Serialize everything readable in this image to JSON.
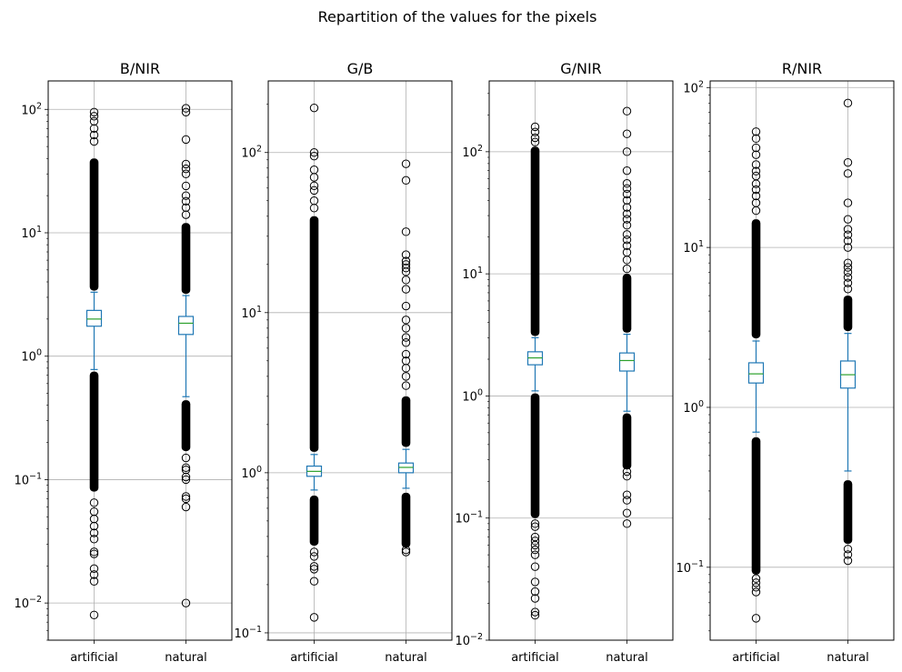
{
  "figure": {
    "suptitle": "Repartition of the values for the pixels"
  },
  "chart_data": [
    {
      "type": "box",
      "title": "B/NIR",
      "y_scale": "log",
      "ylim": [
        0.005,
        170
      ],
      "yticks": [
        0.01,
        0.1,
        1,
        10,
        100
      ],
      "grid": true,
      "categories": [
        "artificial",
        "natural"
      ],
      "boxes": [
        {
          "name": "artificial",
          "q1": 1.75,
          "median": 2.0,
          "q3": 2.35,
          "whisker_low": 0.78,
          "whisker_high": 3.3,
          "outlier_bands": [
            [
              0.08,
              0.75
            ],
            [
              3.4,
              40
            ]
          ],
          "outliers": [
            0.008,
            0.015,
            0.017,
            0.019,
            0.025,
            0.026,
            0.033,
            0.037,
            0.042,
            0.048,
            0.055,
            0.065,
            55,
            62,
            70,
            80,
            88,
            95
          ]
        },
        {
          "name": "natural",
          "q1": 1.5,
          "median": 1.85,
          "q3": 2.1,
          "whisker_low": 0.47,
          "whisker_high": 3.1,
          "outlier_bands": [
            [
              0.17,
              0.44
            ],
            [
              3.2,
              12
            ]
          ],
          "outliers": [
            0.01,
            0.06,
            0.07,
            0.073,
            0.1,
            0.105,
            0.12,
            0.125,
            0.15,
            14,
            16,
            18,
            20,
            24,
            30,
            33,
            36,
            57,
            95,
            102
          ]
        }
      ]
    },
    {
      "type": "box",
      "title": "G/B",
      "y_scale": "log",
      "ylim": [
        0.09,
        280
      ],
      "yticks": [
        0.1,
        1,
        10,
        100
      ],
      "grid": true,
      "categories": [
        "artificial",
        "natural"
      ],
      "boxes": [
        {
          "name": "artificial",
          "q1": 0.95,
          "median": 1.02,
          "q3": 1.1,
          "whisker_low": 0.78,
          "whisker_high": 1.3,
          "outlier_bands": [
            [
              0.35,
              0.72
            ],
            [
              1.35,
              40
            ]
          ],
          "outliers": [
            0.125,
            0.21,
            0.25,
            0.26,
            0.3,
            0.32,
            45,
            50,
            58,
            62,
            70,
            78,
            95,
            100,
            190
          ]
        },
        {
          "name": "natural",
          "q1": 1.0,
          "median": 1.08,
          "q3": 1.15,
          "whisker_low": 0.8,
          "whisker_high": 1.4,
          "outlier_bands": [
            [
              0.34,
              0.75
            ],
            [
              1.45,
              3.0
            ]
          ],
          "outliers": [
            0.32,
            0.33,
            3.5,
            4.0,
            4.5,
            5.0,
            5.5,
            6.5,
            7.0,
            8.0,
            9.0,
            11,
            14,
            16,
            18,
            19,
            20,
            21,
            23,
            32,
            67,
            85
          ]
        }
      ]
    },
    {
      "type": "box",
      "title": "G/NIR",
      "y_scale": "log",
      "ylim": [
        0.01,
        380
      ],
      "yticks": [
        0.01,
        0.1,
        1,
        10,
        100
      ],
      "grid": true,
      "categories": [
        "artificial",
        "natural"
      ],
      "boxes": [
        {
          "name": "artificial",
          "q1": 1.8,
          "median": 2.05,
          "q3": 2.3,
          "whisker_low": 1.1,
          "whisker_high": 3.0,
          "outlier_bands": [
            [
              0.1,
              1.05
            ],
            [
              3.1,
              110
            ]
          ],
          "outliers": [
            0.016,
            0.017,
            0.022,
            0.025,
            0.03,
            0.04,
            0.05,
            0.055,
            0.06,
            0.065,
            0.07,
            0.085,
            0.09,
            120,
            130,
            145,
            160
          ]
        },
        {
          "name": "natural",
          "q1": 1.6,
          "median": 1.95,
          "q3": 2.25,
          "whisker_low": 0.75,
          "whisker_high": 3.2,
          "outlier_bands": [
            [
              0.25,
              0.72
            ],
            [
              3.3,
              10
            ]
          ],
          "outliers": [
            0.09,
            0.11,
            0.14,
            0.155,
            0.22,
            0.24,
            11,
            13,
            15,
            17,
            19,
            21,
            25,
            28,
            31,
            35,
            40,
            45,
            50,
            55,
            70,
            100,
            140,
            215
          ]
        }
      ]
    },
    {
      "type": "box",
      "title": "R/NIR",
      "y_scale": "log",
      "ylim": [
        0.035,
        110
      ],
      "yticks": [
        0.1,
        1,
        10,
        100
      ],
      "grid": true,
      "categories": [
        "artificial",
        "natural"
      ],
      "boxes": [
        {
          "name": "artificial",
          "q1": 1.42,
          "median": 1.62,
          "q3": 1.9,
          "whisker_low": 0.7,
          "whisker_high": 2.6,
          "outlier_bands": [
            [
              0.09,
              0.65
            ],
            [
              2.7,
              15
            ]
          ],
          "outliers": [
            0.048,
            0.07,
            0.075,
            0.08,
            0.085,
            17,
            19,
            21,
            23,
            25,
            28,
            30,
            33,
            38,
            42,
            48,
            53
          ]
        },
        {
          "name": "natural",
          "q1": 1.32,
          "median": 1.6,
          "q3": 1.95,
          "whisker_low": 0.4,
          "whisker_high": 2.9,
          "outlier_bands": [
            [
              0.14,
              0.35
            ],
            [
              3.0,
              5.0
            ]
          ],
          "outliers": [
            0.11,
            0.12,
            0.13,
            5.5,
            6.0,
            6.5,
            7.0,
            7.5,
            8.0,
            10,
            11,
            12,
            13,
            15,
            19,
            29,
            34,
            80
          ]
        }
      ]
    }
  ]
}
